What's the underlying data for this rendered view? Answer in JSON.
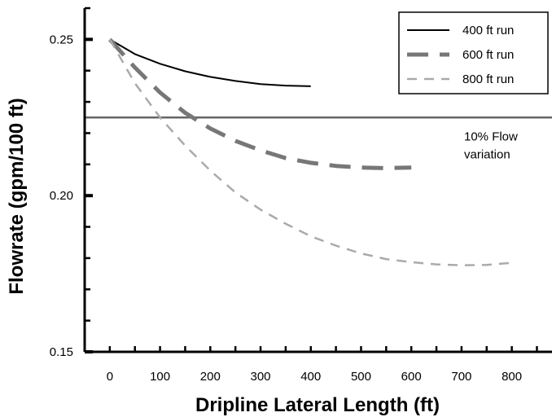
{
  "chart_data": {
    "type": "line",
    "title": "",
    "xlabel": "Dripline Lateral Length (ft)",
    "ylabel": "Flowrate (gpm/100 ft)",
    "xlim": [
      -50,
      880
    ],
    "ylim": [
      0.15,
      0.26
    ],
    "x_ticks": [
      "0",
      "100",
      "200",
      "300",
      "400",
      "500",
      "600",
      "700",
      "800"
    ],
    "y_ticks": [
      "0.15",
      "0.20",
      "0.25"
    ],
    "grid": false,
    "legend_position": "top-right",
    "series": [
      {
        "name": "400 ft run",
        "style": "solid",
        "color": "#000000",
        "x": [
          0,
          50,
          100,
          150,
          200,
          250,
          300,
          350,
          400
        ],
        "y": [
          0.25,
          0.2453,
          0.2422,
          0.2398,
          0.238,
          0.2367,
          0.2357,
          0.2352,
          0.235
        ]
      },
      {
        "name": "600 ft run",
        "style": "dashed",
        "color": "#777777",
        "x": [
          0,
          50,
          100,
          150,
          200,
          250,
          300,
          350,
          400,
          450,
          500,
          550,
          600
        ],
        "y": [
          0.25,
          0.241,
          0.233,
          0.2265,
          0.2215,
          0.2175,
          0.2145,
          0.212,
          0.2105,
          0.2095,
          0.209,
          0.2088,
          0.209
        ]
      },
      {
        "name": "800 ft run",
        "style": "dashed",
        "color": "#aaaaaa",
        "x": [
          0,
          50,
          100,
          150,
          200,
          250,
          300,
          350,
          400,
          450,
          500,
          550,
          600,
          650,
          700,
          750,
          800
        ],
        "y": [
          0.25,
          0.236,
          0.225,
          0.216,
          0.208,
          0.201,
          0.1955,
          0.191,
          0.187,
          0.184,
          0.1815,
          0.1797,
          0.1787,
          0.178,
          0.1777,
          0.1778,
          0.1785
        ]
      }
    ],
    "reference_line": {
      "y": 0.225,
      "label_line1": "10% Flow",
      "label_line2": "variation",
      "color": "#666666"
    }
  }
}
